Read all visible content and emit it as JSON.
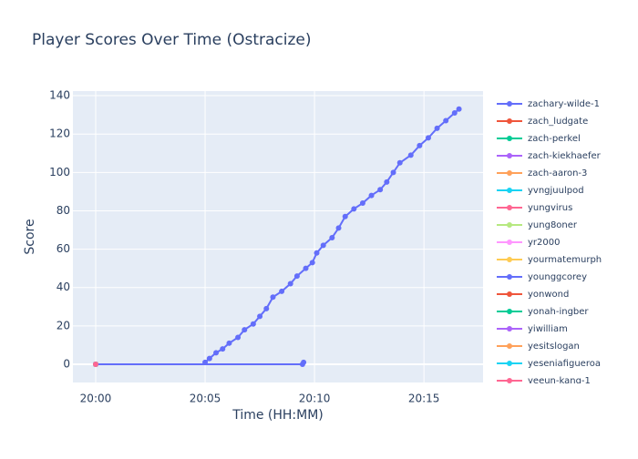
{
  "chart_data": {
    "type": "line",
    "title": "Player Scores Over Time (Ostracize)",
    "x_label": "Time (HH:MM)",
    "y_label": "Score",
    "xlim": [
      -1.04,
      17.7
    ],
    "xticks": [
      {
        "value": 0,
        "label": "20:00"
      },
      {
        "value": 5,
        "label": "20:05"
      },
      {
        "value": 10,
        "label": "20:10"
      },
      {
        "value": 15,
        "label": "20:15"
      }
    ],
    "ylim": [
      -9.5,
      142.4
    ],
    "yticks": [
      0,
      20,
      40,
      60,
      80,
      100,
      120,
      140
    ],
    "grid": true,
    "series": [
      {
        "name": "zachary-wilde-1",
        "color": "#636efa",
        "x": [
          5.0,
          5.2,
          5.5,
          5.8,
          6.1,
          6.5,
          6.8,
          7.2,
          7.5,
          7.8,
          8.1,
          8.5,
          8.9,
          9.2,
          9.6,
          9.9,
          10.1,
          10.4,
          10.8,
          11.1,
          11.4,
          11.8,
          12.2,
          12.6,
          13.0,
          13.3,
          13.6,
          13.9,
          14.4,
          14.8,
          15.2,
          15.6,
          16.0,
          16.4,
          16.6
        ],
        "values": [
          1,
          3,
          6,
          8,
          11,
          14,
          18,
          21,
          25,
          29,
          35,
          38,
          42,
          46,
          50,
          53,
          58,
          62,
          66,
          71,
          77,
          81,
          84,
          88,
          91,
          95,
          100,
          105,
          109,
          114,
          118,
          123,
          127,
          131,
          133
        ]
      },
      {
        "name": "zach_ludgate",
        "color": "#EF553B",
        "x": [
          0
        ],
        "values": [
          0
        ]
      },
      {
        "name": "zach-perkel",
        "color": "#00cc96",
        "x": [
          0
        ],
        "values": [
          0
        ]
      },
      {
        "name": "zach-kiekhaefer",
        "color": "#ab63fa",
        "x": [
          0
        ],
        "values": [
          0
        ]
      },
      {
        "name": "zach-aaron-3",
        "color": "#FFA15A",
        "x": [
          0
        ],
        "values": [
          0
        ]
      },
      {
        "name": "yvngjuulpod",
        "color": "#19d3f3",
        "x": [
          0
        ],
        "values": [
          0
        ]
      },
      {
        "name": "yungvirus",
        "color": "#FF6692",
        "x": [
          0
        ],
        "values": [
          0
        ]
      },
      {
        "name": "yung8oner",
        "color": "#B6E880",
        "x": [
          0
        ],
        "values": [
          0
        ]
      },
      {
        "name": "yr2000",
        "color": "#FF97FF",
        "x": [
          0
        ],
        "values": [
          0
        ]
      },
      {
        "name": "yourmatemurph",
        "color": "#FECB52",
        "x": [
          0
        ],
        "values": [
          0
        ]
      },
      {
        "name": "younggcorey",
        "color": "#636efa",
        "x": [
          0,
          9.45,
          9.5
        ],
        "values": [
          0,
          0,
          1
        ]
      },
      {
        "name": "yonwond",
        "color": "#EF553B",
        "x": [
          0
        ],
        "values": [
          0
        ]
      },
      {
        "name": "yonah-ingber",
        "color": "#00cc96",
        "x": [
          0
        ],
        "values": [
          0
        ]
      },
      {
        "name": "yiwilliam",
        "color": "#ab63fa",
        "x": [
          0
        ],
        "values": [
          0
        ]
      },
      {
        "name": "yesitslogan",
        "color": "#FFA15A",
        "x": [
          0
        ],
        "values": [
          0
        ]
      },
      {
        "name": "yeseniafigueroa",
        "color": "#19d3f3",
        "x": [
          0
        ],
        "values": [
          0
        ]
      },
      {
        "name": "yeeun-kang-1",
        "color": "#FF6692",
        "x": [
          0
        ],
        "values": [
          0
        ]
      }
    ]
  }
}
